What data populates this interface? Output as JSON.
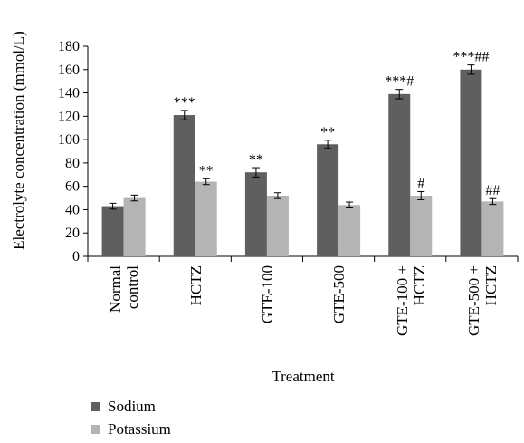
{
  "chart_data": {
    "type": "bar",
    "title": "",
    "xlabel": "Treatment",
    "ylabel": "Electrolyte concentration (mmol/L)",
    "ylim": [
      0,
      180
    ],
    "yticks": [
      0,
      20,
      40,
      60,
      80,
      100,
      120,
      140,
      160,
      180
    ],
    "grid": false,
    "legend_position": "bottom-left",
    "categories": [
      [
        "Normal",
        "control"
      ],
      [
        "HCTZ"
      ],
      [
        "GTE-100"
      ],
      [
        "GTE-500"
      ],
      [
        "GTE-100 +",
        "HCTZ"
      ],
      [
        "GTE-500 +",
        "HCTZ"
      ]
    ],
    "series": [
      {
        "name": "Sodium",
        "color": "#5f5f5f",
        "values": [
          43,
          121,
          72,
          96,
          139,
          160
        ],
        "errors": [
          2.5,
          4,
          4,
          3.5,
          4,
          4
        ],
        "annotations": [
          "",
          "***",
          "**",
          "**",
          "***#",
          "***##"
        ]
      },
      {
        "name": "Potassium",
        "color": "#b4b4b4",
        "values": [
          50,
          64,
          52,
          44,
          52,
          47
        ],
        "errors": [
          2.5,
          2.5,
          2.5,
          2.5,
          3.5,
          2.5
        ],
        "annotations": [
          "",
          "**",
          "",
          "",
          "#",
          "##"
        ]
      }
    ]
  }
}
